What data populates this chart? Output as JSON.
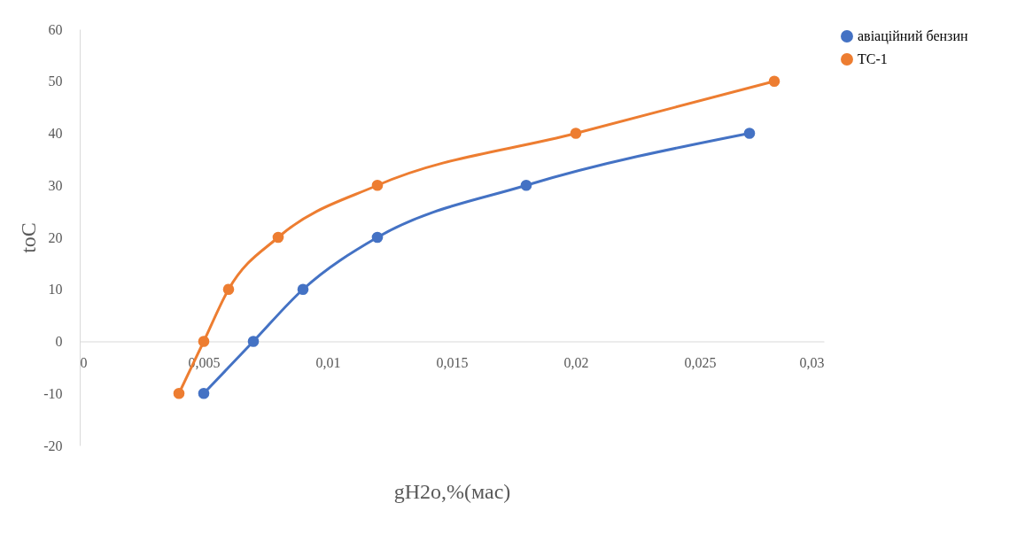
{
  "chart_data": {
    "type": "line",
    "xlabel": "gH2o,%(мас)",
    "ylabel": "toC",
    "series": [
      {
        "name": "авіаційний бензин",
        "color": "#4472c4",
        "x": [
          0.005,
          0.007,
          0.009,
          0.012,
          0.018,
          0.027
        ],
        "values": [
          -10,
          0,
          10,
          20,
          30,
          40
        ]
      },
      {
        "name": "ТС-1",
        "color": "#ed7d31",
        "x": [
          0.004,
          0.005,
          0.006,
          0.008,
          0.012,
          0.02,
          0.028
        ],
        "values": [
          -10,
          0,
          10,
          20,
          30,
          40,
          50
        ]
      }
    ],
    "xlim": [
      0,
      0.03
    ],
    "xticks": [
      0,
      {
        "value": 0.005,
        "label": "0,005"
      },
      {
        "value": 0.01,
        "label": "0,01"
      },
      {
        "value": 0.015,
        "label": "0,015"
      },
      {
        "value": 0.02,
        "label": "0,02"
      },
      {
        "value": 0.025,
        "label": "0,025"
      },
      {
        "value": 0.03,
        "label": "0,03"
      }
    ],
    "ylim": [
      -20,
      60
    ],
    "yticks": [
      -20,
      -10,
      0,
      10,
      20,
      30,
      40,
      50,
      60
    ],
    "grid": false,
    "legend": "right",
    "marker": "circle",
    "line_style": "solid"
  }
}
